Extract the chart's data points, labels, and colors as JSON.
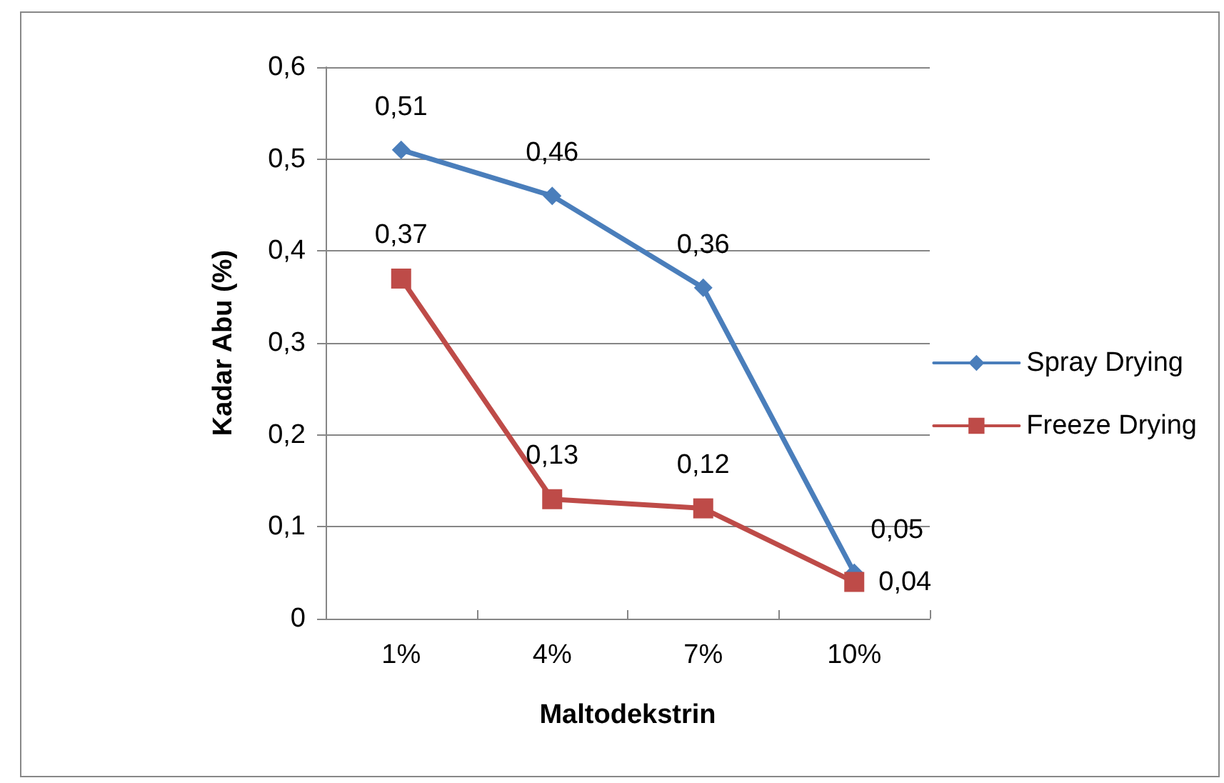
{
  "chart_data": {
    "type": "line",
    "xlabel": "Maltodekstrin",
    "ylabel": "Kadar Abu (%)",
    "categories": [
      "1%",
      "4%",
      "7%",
      "10%"
    ],
    "series": [
      {
        "name": "Spray Drying",
        "color": "#4a7ebb",
        "marker": "diamond",
        "values": [
          0.51,
          0.46,
          0.36,
          0.05
        ],
        "value_labels": [
          "0,51",
          "0,46",
          "0,36",
          "0,05"
        ]
      },
      {
        "name": "Freeze Drying",
        "color": "#be4b48",
        "marker": "square",
        "values": [
          0.37,
          0.13,
          0.12,
          0.04
        ],
        "value_labels": [
          "0,37",
          "0,13",
          "0,12",
          "0,04"
        ]
      }
    ],
    "ylim": [
      0,
      0.6
    ],
    "yticks": [
      0,
      {
        "value": 0.1,
        "label": "0,1"
      },
      {
        "value": 0.2,
        "label": "0,2"
      },
      {
        "value": 0.3,
        "label": "0,3"
      },
      {
        "value": 0.4,
        "label": "0,4"
      },
      {
        "value": 0.5,
        "label": "0,5"
      },
      {
        "value": 0.6,
        "label": "0,6"
      }
    ],
    "grid": "y",
    "legend": "right",
    "line_style": "solid"
  }
}
